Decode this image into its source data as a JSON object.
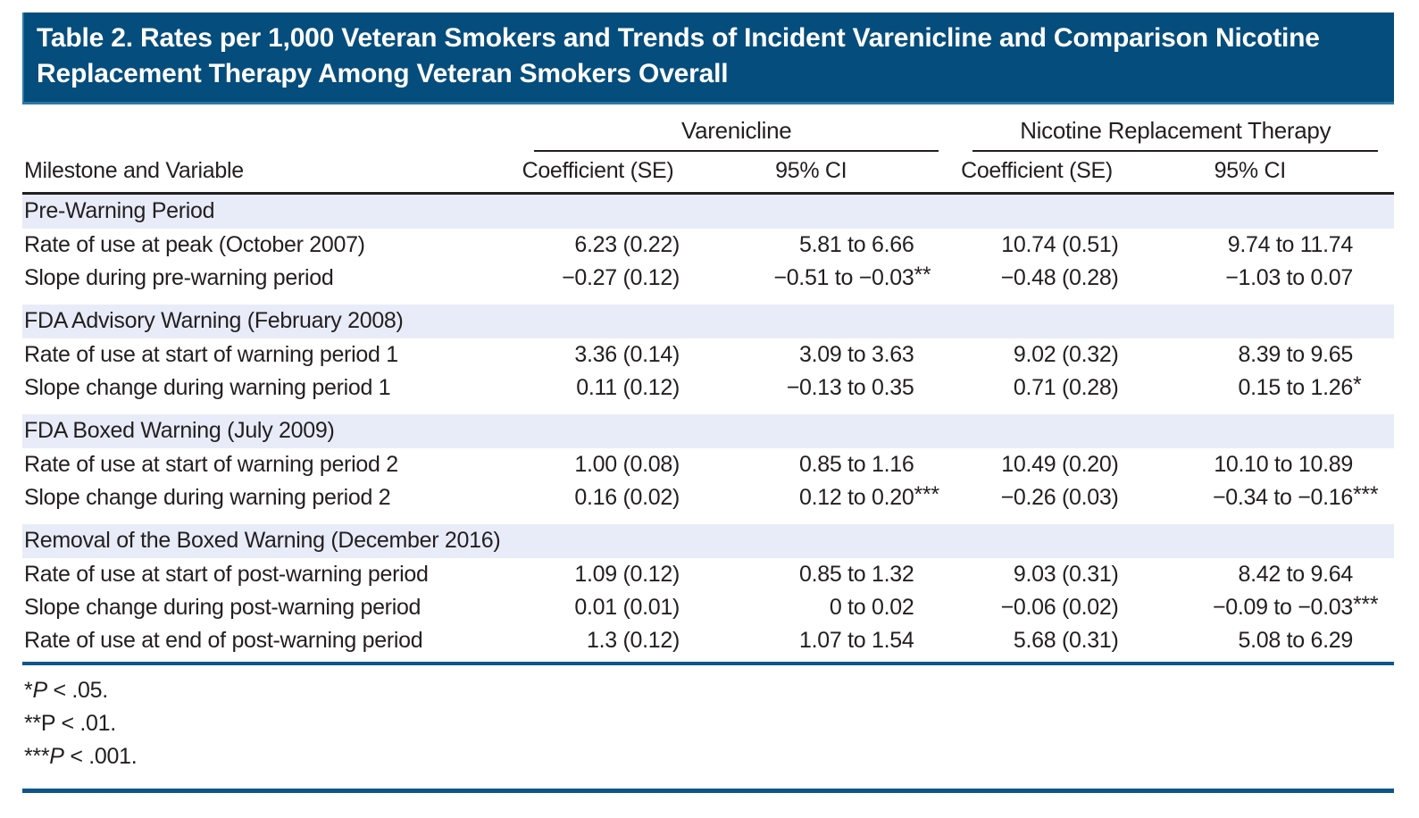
{
  "title": "Table 2. Rates per 1,000 Veteran Smokers and Trends of Incident Varenicline and Comparison Nicotine Replacement Therapy Among Veteran Smokers Overall",
  "colors": {
    "title_bar_bg": "#054d7c",
    "title_bar_edge": "#2b7aa6",
    "section_band_bg": "#e8ecf8",
    "rule_black": "#231f20",
    "rule_blue": "#10558a",
    "title_text": "#ffffff",
    "body_text": "#231f20"
  },
  "columns": {
    "stub": "Milestone and Variable",
    "groups": [
      {
        "label": "Varenicline",
        "sub": [
          "Coefficient (SE)",
          "95% CI"
        ]
      },
      {
        "label": "Nicotine Replacement Therapy",
        "sub": [
          "Coefficient (SE)",
          "95% CI"
        ]
      }
    ]
  },
  "table": {
    "sections": [
      {
        "header": "Pre-Warning Period",
        "rows": [
          {
            "label": "Rate of use at peak (October 2007)",
            "cells": [
              {
                "v": "6.23 (0.22)",
                "s": ""
              },
              {
                "v": "5.81 to 6.66",
                "s": ""
              },
              {
                "v": "10.74 (0.51)",
                "s": ""
              },
              {
                "v": "9.74 to 11.74",
                "s": ""
              }
            ]
          },
          {
            "label": "Slope during pre-warning period",
            "cells": [
              {
                "v": "−0.27 (0.12)",
                "s": ""
              },
              {
                "v": "−0.51 to −0.03",
                "s": "**"
              },
              {
                "v": "−0.48 (0.28)",
                "s": ""
              },
              {
                "v": "−1.03 to 0.07",
                "s": ""
              }
            ]
          }
        ]
      },
      {
        "header": "FDA Advisory Warning (February 2008)",
        "rows": [
          {
            "label": "Rate of use at start of warning period 1",
            "cells": [
              {
                "v": "3.36 (0.14)",
                "s": ""
              },
              {
                "v": "3.09 to 3.63",
                "s": ""
              },
              {
                "v": "9.02 (0.32)",
                "s": ""
              },
              {
                "v": "8.39 to 9.65",
                "s": ""
              }
            ]
          },
          {
            "label": "Slope change during warning period 1",
            "cells": [
              {
                "v": "0.11 (0.12)",
                "s": ""
              },
              {
                "v": "−0.13 to 0.35",
                "s": ""
              },
              {
                "v": "0.71 (0.28)",
                "s": ""
              },
              {
                "v": "0.15 to 1.26",
                "s": "*"
              }
            ]
          }
        ]
      },
      {
        "header": "FDA Boxed Warning (July 2009)",
        "rows": [
          {
            "label": "Rate of use at start of warning period 2",
            "cells": [
              {
                "v": "1.00 (0.08)",
                "s": ""
              },
              {
                "v": "0.85 to 1.16",
                "s": ""
              },
              {
                "v": "10.49 (0.20)",
                "s": ""
              },
              {
                "v": "10.10 to 10.89",
                "s": ""
              }
            ]
          },
          {
            "label": "Slope change during warning period 2",
            "cells": [
              {
                "v": "0.16 (0.02)",
                "s": ""
              },
              {
                "v": "0.12 to 0.20",
                "s": "***"
              },
              {
                "v": "−0.26 (0.03)",
                "s": ""
              },
              {
                "v": "−0.34 to −0.16",
                "s": "***"
              }
            ]
          }
        ]
      },
      {
        "header": "Removal of the Boxed Warning (December 2016)",
        "rows": [
          {
            "label": "Rate of use at start of post-warning period",
            "cells": [
              {
                "v": "1.09 (0.12)",
                "s": ""
              },
              {
                "v": "0.85 to 1.32",
                "s": ""
              },
              {
                "v": "9.03 (0.31)",
                "s": ""
              },
              {
                "v": "8.42 to 9.64",
                "s": ""
              }
            ]
          },
          {
            "label": "Slope change during post-warning period",
            "cells": [
              {
                "v": "0.01 (0.01)",
                "s": ""
              },
              {
                "v": "0 to 0.02",
                "s": ""
              },
              {
                "v": "−0.06 (0.02)",
                "s": ""
              },
              {
                "v": "−0.09 to −0.03",
                "s": "***"
              }
            ]
          },
          {
            "label": "Rate of use at end of post-warning period",
            "cells": [
              {
                "v": "1.3 (0.12)",
                "s": ""
              },
              {
                "v": "1.07 to 1.54",
                "s": ""
              },
              {
                "v": "5.68 (0.31)",
                "s": ""
              },
              {
                "v": "5.08 to 6.29",
                "s": ""
              }
            ]
          }
        ]
      }
    ]
  },
  "footnotes": [
    {
      "stars": "*",
      "symbol": "P",
      "text": " < .05."
    },
    {
      "stars": "**",
      "symbol": "P",
      "text": " < .01."
    },
    {
      "stars": "***",
      "symbol": "P",
      "text": " < .001."
    }
  ]
}
